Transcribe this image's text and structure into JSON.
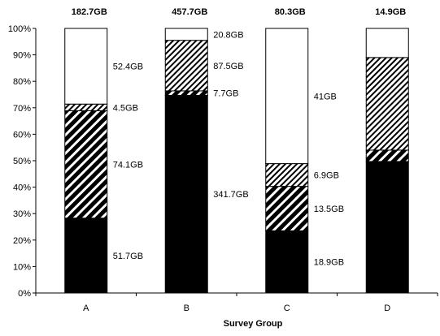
{
  "chart_data": {
    "type": "bar",
    "stacked": true,
    "percent_stacked": true,
    "xlabel": "Survey Group",
    "categories": [
      "A",
      "B",
      "C",
      "D"
    ],
    "totals": [
      "182.7GB",
      "457.7GB",
      "80.3GB",
      "14.9GB"
    ],
    "ylim": [
      0,
      100
    ],
    "yticks": [
      "0%",
      "10%",
      "20%",
      "30%",
      "40%",
      "50%",
      "60%",
      "70%",
      "80%",
      "90%",
      "100%"
    ],
    "grid": false,
    "legend": "none",
    "series": [
      {
        "fill": "solid-black",
        "values": [
          28.3,
          74.7,
          23.5,
          49.7
        ],
        "labels": [
          "51.7GB",
          "341.7GB",
          "18.9GB",
          ""
        ]
      },
      {
        "fill": "dense-diagonal-hatch",
        "values": [
          40.6,
          1.7,
          16.8,
          4.3
        ],
        "labels": [
          "74.1GB",
          "7.7GB",
          "13.5GB",
          ""
        ]
      },
      {
        "fill": "light-diagonal-hatch",
        "values": [
          2.5,
          19.1,
          8.6,
          35.0
        ],
        "labels": [
          "4.5GB",
          "87.5GB",
          "6.9GB",
          ""
        ]
      },
      {
        "fill": "white",
        "values": [
          28.6,
          4.5,
          51.1,
          11.0
        ],
        "labels": [
          "52.4GB",
          "20.8GB",
          "41GB",
          ""
        ]
      }
    ]
  }
}
